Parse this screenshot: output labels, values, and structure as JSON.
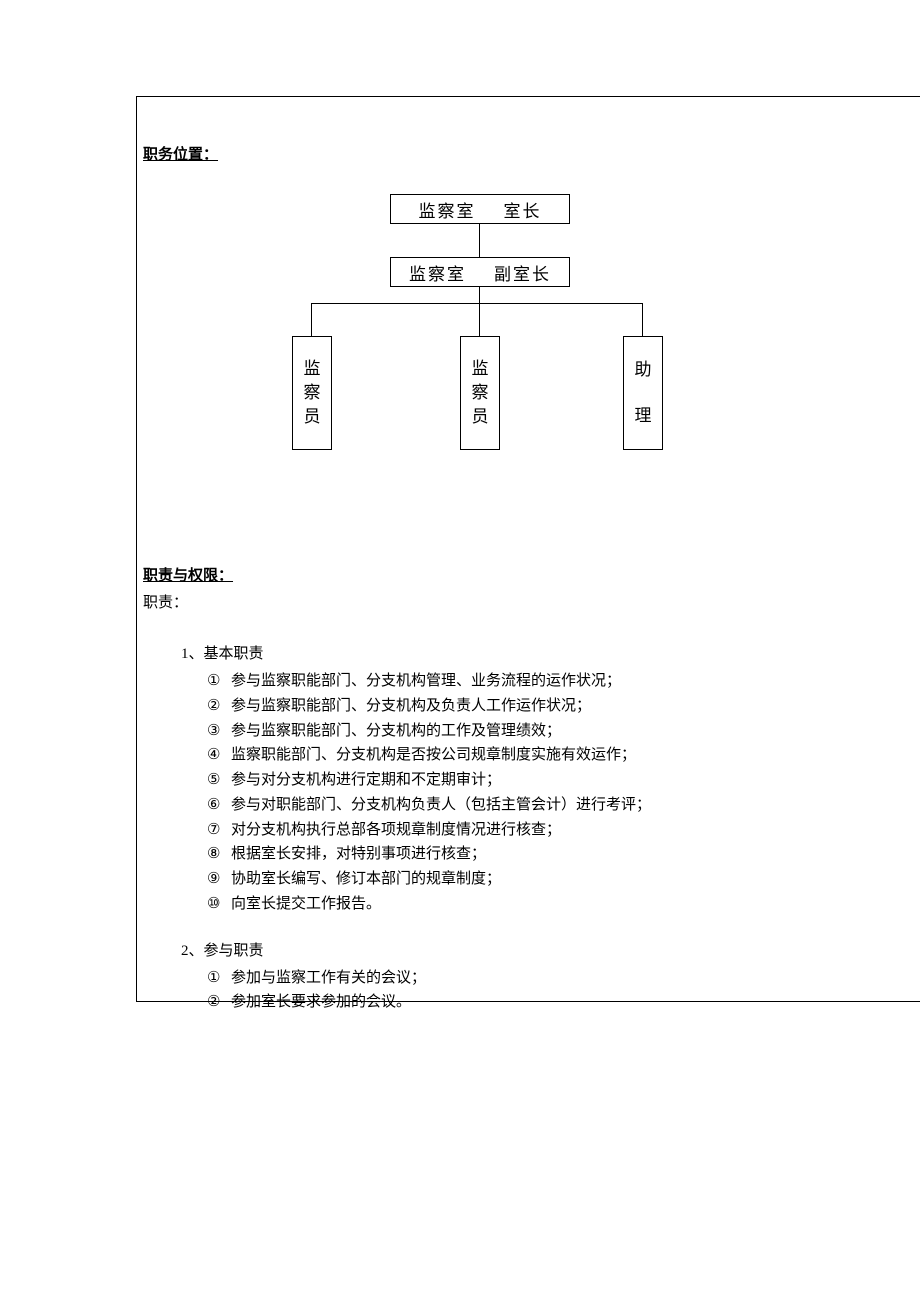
{
  "section1": {
    "letter": "",
    "title": "职务位置："
  },
  "orgchart": {
    "type": "tree",
    "background_color": "#ffffff",
    "border_color": "#000000",
    "line_color": "#000000",
    "font_size": 17,
    "nodes": {
      "top1": {
        "left": "监察室",
        "right": "室长"
      },
      "top2": {
        "left": "监察室",
        "right": "副室长"
      },
      "child1": "监察员",
      "child2": "监察员",
      "child3_a": "助",
      "child3_b": "理"
    }
  },
  "section2": {
    "title": "职责与权限：",
    "subtitle": "职责："
  },
  "block1": {
    "title": "1、基本职责",
    "items": [
      "参与监察职能部门、分支机构管理、业务流程的运作状况；",
      "参与监察职能部门、分支机构及负责人工作运作状况；",
      "参与监察职能部门、分支机构的工作及管理绩效；",
      "监察职能部门、分支机构是否按公司规章制度实施有效运作；",
      "参与对分支机构进行定期和不定期审计；",
      "参与对职能部门、分支机构负责人（包括主管会计）进行考评；",
      "对分支机构执行总部各项规章制度情况进行核查；",
      "根据室长安排，对特别事项进行核查；",
      "协助室长编写、修订本部门的规章制度；",
      "向室长提交工作报告。"
    ]
  },
  "block2": {
    "title": "2、参与职责",
    "items": [
      "参加与监察工作有关的会议；",
      "参加室长要求参加的会议。"
    ]
  },
  "markers": [
    "①",
    "②",
    "③",
    "④",
    "⑤",
    "⑥",
    "⑦",
    "⑧",
    "⑨",
    "⑩"
  ]
}
